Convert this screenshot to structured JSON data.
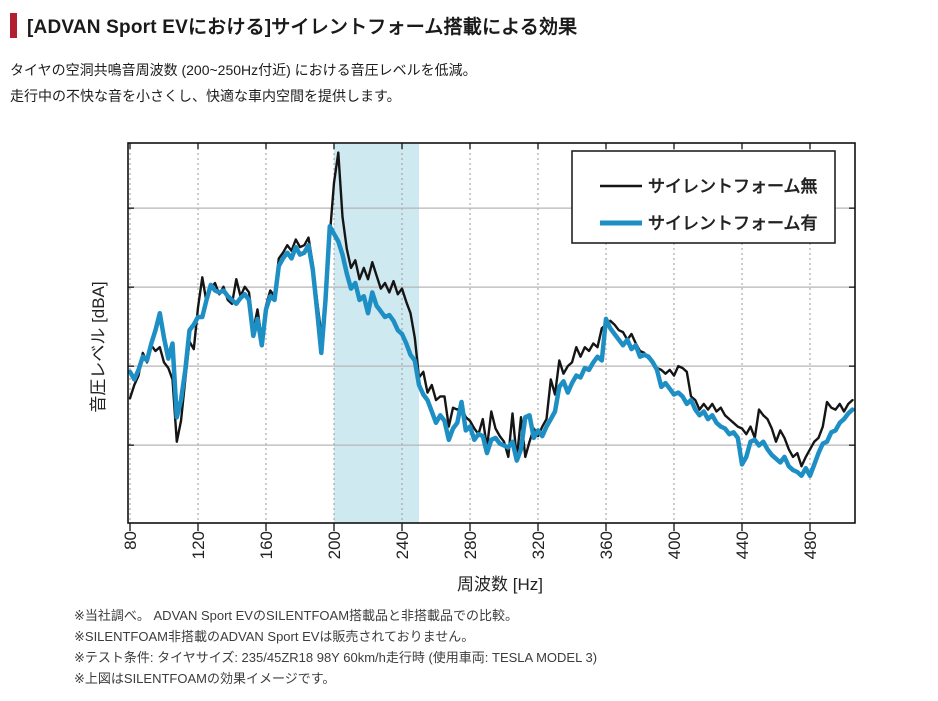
{
  "page": {
    "title": "[ADVAN Sport EVにおける]サイレントフォーム搭載による効果",
    "accent_color": "#b11f31",
    "intro_lines": [
      "タイヤの空洞共鳴音周波数 (200~250Hz付近) における音圧レベルを低減。",
      "走行中の不快な音を小さくし、快適な車内空間を提供します。"
    ],
    "notes": [
      "※当社調べ。 ADVAN Sport EVのSILENTFOAM搭載品と非搭載品での比較。",
      "※SILENTFOAM非搭載のADVAN Sport EVは販売されておりません。",
      "※テスト条件: タイヤサイズ: 235/45ZR18 98Y 60km/h走行時 (使用車両: TESLA MODEL 3)",
      "※上図はSILENTFOAMの効果イメージです。"
    ]
  },
  "chart_data": {
    "type": "line",
    "title": "",
    "xlabel": "周波数 [Hz]",
    "ylabel": "音圧レベル [dBA]",
    "x_ticks": [
      80,
      120,
      160,
      200,
      240,
      280,
      320,
      360,
      400,
      440,
      480
    ],
    "xlim": [
      79,
      507
    ],
    "ylim": [
      0,
      100
    ],
    "y_axis_numeric_labels_shown": false,
    "y_gridline_levels": [
      20.6,
      41.5,
      62.4,
      83.3
    ],
    "grid": "on",
    "legend_position": "top-right",
    "highlight_band": {
      "x_start": 200,
      "x_end": 250,
      "color": "#cfe9f1"
    },
    "x_start": 80,
    "x_step": 2.5,
    "x_unit": "Hz",
    "y_unit_note": "relative sound pressure level, 0-100 (y axis unlabeled numerically in source)",
    "series": [
      {
        "name": "サイレントフォーム無",
        "color": "#151515",
        "width": 2.4,
        "values": [
          33,
          36.5,
          39,
          45,
          42.5,
          47,
          45.5,
          46.5,
          42.5,
          41,
          38,
          21.5,
          27,
          38,
          48,
          46,
          57,
          65,
          58.5,
          62,
          63.5,
          60.5,
          62.5,
          59,
          58,
          64.5,
          60,
          62.5,
          61,
          51,
          56.5,
          48.5,
          57.5,
          61.5,
          60,
          70,
          71.5,
          73.5,
          72,
          75,
          73,
          73.5,
          75.5,
          68.5,
          59,
          50,
          57,
          76,
          90,
          98,
          81,
          72.5,
          67.5,
          69.5,
          64.5,
          67.5,
          64.5,
          69,
          65.5,
          62,
          63.5,
          61,
          64,
          60.5,
          62,
          58.5,
          55.5,
          49,
          38.5,
          40,
          34.5,
          36.5,
          32.5,
          33.5,
          33.5,
          25.5,
          30.5,
          30,
          30.5,
          28,
          27,
          25,
          23.5,
          27.5,
          20,
          29.5,
          25,
          23,
          21.5,
          17.5,
          29,
          17,
          28,
          17.5,
          21.5,
          25,
          23,
          25.5,
          27.5,
          38,
          34,
          43,
          39.5,
          41.5,
          42.5,
          46.5,
          44,
          46.5,
          45.5,
          47.5,
          46.5,
          51.5,
          52.5,
          53.5,
          52.5,
          51,
          50.5,
          48.5,
          50,
          47.5,
          45.5,
          45,
          43.5,
          42.5,
          41,
          40.5,
          39.5,
          40.5,
          39,
          41.5,
          41,
          40,
          33.5,
          32.5,
          30,
          31.5,
          30,
          31.5,
          29.5,
          30.5,
          28.5,
          27.5,
          26.5,
          25.5,
          25,
          23.5,
          25.5,
          22.5,
          30,
          28.5,
          27.5,
          25,
          21.5,
          24.5,
          22.5,
          19.5,
          17.5,
          18.5,
          15,
          17.5,
          19.5,
          21.5,
          22.5,
          25.5,
          32,
          30.5,
          30,
          31.5,
          29.5,
          31.5,
          32.5
        ]
      },
      {
        "name": "サイレントフォーム有",
        "color": "#1e8fc4",
        "width": 4.5,
        "values": [
          40,
          38,
          40.5,
          44,
          43,
          47.5,
          51,
          55.5,
          49,
          43.5,
          47.5,
          28,
          32.5,
          40.5,
          51,
          52.5,
          54.5,
          54.5,
          59,
          63,
          61.5,
          61,
          61.5,
          60,
          59,
          58,
          59.5,
          60.5,
          59,
          49.5,
          54,
          47,
          56.5,
          60,
          59,
          68,
          70,
          71.5,
          70,
          73,
          71,
          71.5,
          73.5,
          67,
          56.5,
          45,
          59,
          78.5,
          76.5,
          74.5,
          71,
          66,
          62,
          63.5,
          59,
          60,
          55.5,
          61,
          57.5,
          56,
          54.5,
          55,
          53.5,
          51,
          50,
          47.5,
          44.5,
          43,
          36.5,
          34,
          32.5,
          29.5,
          26.5,
          28.5,
          27,
          22,
          25,
          26.5,
          32,
          24.5,
          25.5,
          22,
          23.5,
          23,
          18.5,
          22,
          22.5,
          21,
          20.5,
          20,
          21.5,
          16.5,
          19.5,
          28,
          28.5,
          22.5,
          24.5,
          23,
          25.5,
          27.5,
          29.5,
          36,
          37.5,
          34.5,
          37,
          39,
          38.5,
          41,
          40.5,
          42.5,
          44,
          43,
          54,
          51.5,
          50,
          48.5,
          47,
          48.5,
          46,
          47,
          44,
          44.5,
          44,
          42.5,
          40.5,
          36,
          37,
          35.5,
          34,
          34.5,
          33.5,
          31.5,
          32.5,
          30,
          28.5,
          29.5,
          27.5,
          28.5,
          26.5,
          25.5,
          25,
          23.5,
          24,
          22.5,
          15.5,
          17.5,
          21.5,
          22,
          20.5,
          21.5,
          19.5,
          18,
          17,
          16,
          17.5,
          15,
          14,
          13.5,
          12.5,
          14.5,
          12.5,
          15.5,
          18.5,
          21,
          21.5,
          24,
          24.5,
          26.5,
          27.5,
          29,
          30
        ]
      }
    ]
  }
}
